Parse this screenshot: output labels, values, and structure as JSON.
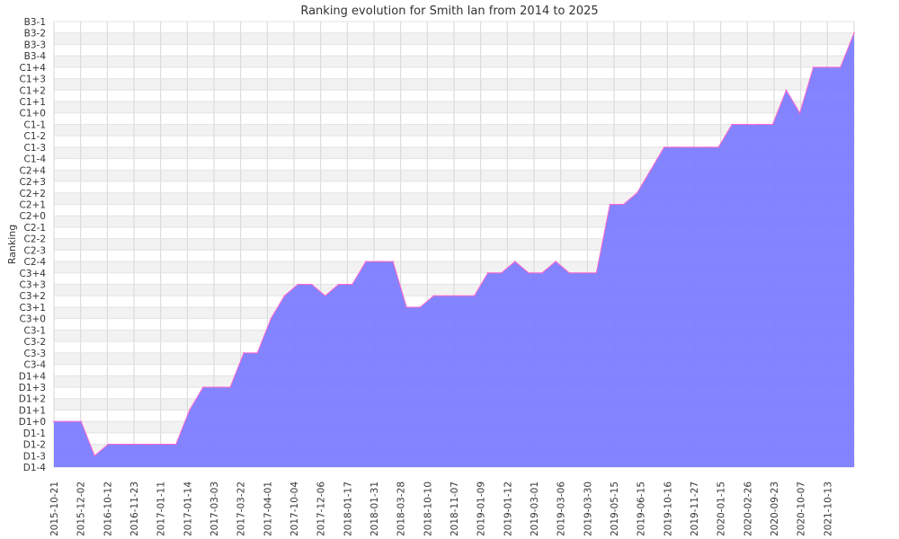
{
  "chart_data": {
    "type": "area",
    "title": "Ranking evolution for Smith Ian from 2014 to 2025",
    "ylabel": "Ranking",
    "xlabel": "",
    "y_categories": [
      "D1-4",
      "D1-3",
      "D1-2",
      "D1-1",
      "D1+0",
      "D1+1",
      "D1+2",
      "D1+3",
      "D1+4",
      "C3-4",
      "C3-3",
      "C3-2",
      "C3-1",
      "C3+0",
      "C3+1",
      "C3+2",
      "C3+3",
      "C3+4",
      "C2-4",
      "C2-3",
      "C2-2",
      "C2-1",
      "C2+0",
      "C2+1",
      "C2+2",
      "C2+3",
      "C2+4",
      "C1-4",
      "C1-3",
      "C1-2",
      "C1-1",
      "C1+0",
      "C1+1",
      "C1+2",
      "C1+3",
      "C1+4",
      "B3-4",
      "B3-3",
      "B3-2",
      "B3-1"
    ],
    "x_tick_labels": [
      "2015-10-21",
      "2015-12-02",
      "2016-10-12",
      "2016-11-23",
      "2017-01-11",
      "2017-01-14",
      "2017-03-03",
      "2017-03-22",
      "2017-04-01",
      "2017-10-04",
      "2017-12-06",
      "2018-01-17",
      "2018-01-31",
      "2018-03-28",
      "2018-10-10",
      "2018-11-07",
      "2019-01-09",
      "2019-01-12",
      "2019-03-01",
      "2019-03-06",
      "2019-03-30",
      "2019-05-15",
      "2019-06-15",
      "2019-10-16",
      "2019-11-27",
      "2020-01-15",
      "2020-02-26",
      "2020-09-23",
      "2020-10-07",
      "2021-10-13"
    ],
    "values": [
      "D1+0",
      "D1+0",
      "D1+0",
      "D1-3",
      "D1-2",
      "D1-2",
      "D1-2",
      "D1-2",
      "D1-2",
      "D1-2",
      "D1+1",
      "D1+3",
      "D1+3",
      "D1+3",
      "C3-3",
      "C3-3",
      "C3+0",
      "C3+2",
      "C3+3",
      "C3+3",
      "C3+2",
      "C3+3",
      "C3+3",
      "C2-4",
      "C2-4",
      "C2-4",
      "C3+1",
      "C3+1",
      "C3+2",
      "C3+2",
      "C3+2",
      "C3+2",
      "C3+4",
      "C3+4",
      "C2-4",
      "C3+4",
      "C3+4",
      "C2-4",
      "C3+4",
      "C3+4",
      "C3+4",
      "C2+1",
      "C2+1",
      "C2+2",
      "C2+4",
      "C1-3",
      "C1-3",
      "C1-3",
      "C1-3",
      "C1-3",
      "C1-1",
      "C1-1",
      "C1-1",
      "C1-1",
      "C1+2",
      "C1+0",
      "C1+4",
      "C1+4",
      "C1+4",
      "B3-2"
    ],
    "series_color": "#7b7bff",
    "line_color": "#ff66cc",
    "grid": true
  }
}
